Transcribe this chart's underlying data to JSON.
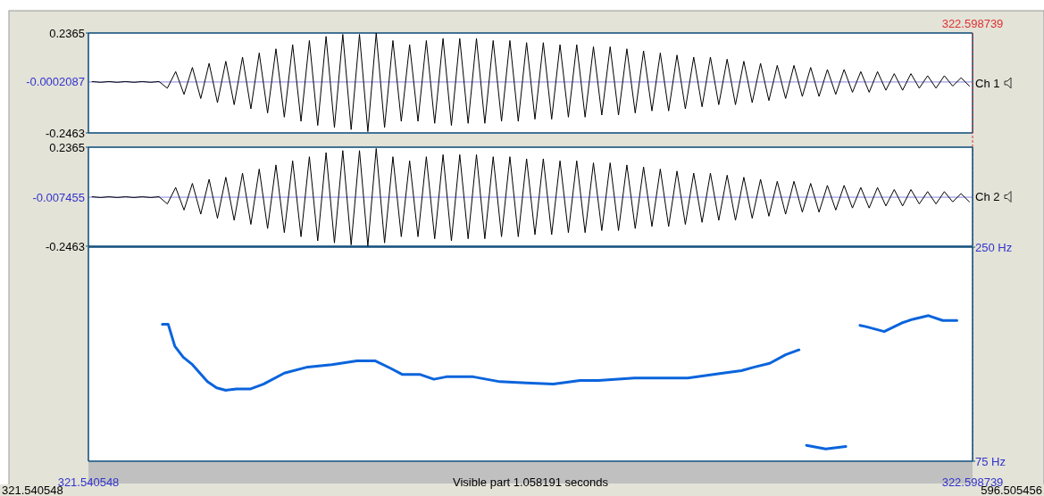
{
  "chart_data": [
    {
      "type": "line",
      "x": [
        321.545,
        321.555,
        321.565,
        321.575,
        321.585,
        321.595,
        321.605,
        321.615,
        321.625,
        321.635,
        321.645,
        321.655,
        321.665,
        321.675,
        321.685,
        321.695,
        321.705,
        321.715,
        321.725,
        321.735,
        321.745,
        321.755,
        321.765,
        321.775,
        321.785,
        321.795,
        321.805,
        321.815,
        321.825,
        321.835,
        321.845,
        321.855,
        321.865,
        321.875,
        321.885,
        321.895,
        321.905,
        321.915,
        321.925,
        321.935,
        321.945,
        321.955,
        321.965,
        321.975,
        321.985,
        321.995,
        322.005,
        322.015,
        322.025,
        322.035,
        322.045,
        322.055,
        322.065,
        322.075,
        322.085,
        322.095,
        322.105,
        322.115,
        322.125,
        322.135,
        322.145,
        322.155,
        322.165,
        322.175,
        322.185,
        322.195,
        322.205,
        322.215,
        322.225,
        322.235,
        322.245,
        322.255,
        322.265,
        322.275,
        322.285,
        322.295,
        322.305,
        322.315,
        322.325,
        322.335,
        322.345,
        322.355,
        322.365,
        322.375,
        322.385,
        322.395,
        322.405,
        322.415,
        322.425,
        322.435,
        322.445,
        322.455,
        322.465,
        322.475,
        322.485,
        322.495,
        322.505,
        322.515,
        322.525,
        322.535,
        322.545,
        322.555,
        322.565,
        322.575,
        322.585,
        322.595
      ],
      "series": [
        {
          "name": "Ch 1",
          "color": "#000000",
          "values": [
            0.002,
            -0.002,
            0.002,
            -0.002,
            0.002,
            -0.002,
            0.002,
            -0.002,
            0.002,
            -0.03,
            0.05,
            -0.06,
            0.07,
            -0.08,
            0.09,
            -0.1,
            0.1,
            -0.11,
            0.12,
            -0.13,
            0.14,
            -0.15,
            0.16,
            -0.17,
            0.18,
            -0.19,
            0.2,
            -0.21,
            0.22,
            -0.22,
            0.23,
            -0.23,
            0.23,
            -0.24,
            0.236,
            -0.22,
            0.2,
            -0.19,
            0.18,
            -0.19,
            0.2,
            -0.2,
            0.21,
            -0.21,
            0.21,
            -0.2,
            0.21,
            -0.2,
            0.2,
            -0.19,
            0.2,
            -0.19,
            0.19,
            -0.18,
            0.19,
            -0.18,
            0.18,
            -0.17,
            0.18,
            -0.17,
            0.17,
            -0.16,
            0.17,
            -0.16,
            0.16,
            -0.15,
            0.15,
            -0.14,
            0.14,
            -0.14,
            0.13,
            -0.13,
            0.12,
            -0.12,
            0.12,
            -0.11,
            0.11,
            -0.11,
            0.1,
            -0.1,
            0.09,
            -0.09,
            0.08,
            -0.08,
            0.08,
            -0.07,
            0.07,
            -0.07,
            0.06,
            -0.06,
            0.06,
            -0.05,
            0.05,
            -0.05,
            0.05,
            -0.04,
            0.04,
            -0.04,
            0.04,
            -0.03,
            0.03,
            -0.03,
            0.03,
            -0.02,
            0.02,
            -0.02
          ]
        }
      ],
      "xlim": [
        321.540548,
        322.598739
      ],
      "ylim": [
        -0.2463,
        0.2365
      ],
      "yticks": [
        -0.2463,
        0.2365
      ],
      "tick_labels": "y",
      "ref_lines": [
        {
          "axis": "y",
          "value": -0.0002087,
          "label": "-0.0002087",
          "color": "#3333cc"
        },
        {
          "axis": "x",
          "value": 322.598739,
          "label": "322.598739",
          "color": "#e03030",
          "line_style": "dashed"
        }
      ]
    },
    {
      "type": "line",
      "x": [
        321.545,
        321.555,
        321.565,
        321.575,
        321.585,
        321.595,
        321.605,
        321.615,
        321.625,
        321.635,
        321.645,
        321.655,
        321.665,
        321.675,
        321.685,
        321.695,
        321.705,
        321.715,
        321.725,
        321.735,
        321.745,
        321.755,
        321.765,
        321.775,
        321.785,
        321.795,
        321.805,
        321.815,
        321.825,
        321.835,
        321.845,
        321.855,
        321.865,
        321.875,
        321.885,
        321.895,
        321.905,
        321.915,
        321.925,
        321.935,
        321.945,
        321.955,
        321.965,
        321.975,
        321.985,
        321.995,
        322.005,
        322.015,
        322.025,
        322.035,
        322.045,
        322.055,
        322.065,
        322.075,
        322.085,
        322.095,
        322.105,
        322.115,
        322.125,
        322.135,
        322.145,
        322.155,
        322.165,
        322.175,
        322.185,
        322.195,
        322.205,
        322.215,
        322.225,
        322.235,
        322.245,
        322.255,
        322.265,
        322.275,
        322.285,
        322.295,
        322.305,
        322.315,
        322.325,
        322.335,
        322.345,
        322.355,
        322.365,
        322.375,
        322.385,
        322.395,
        322.405,
        322.415,
        322.425,
        322.435,
        322.445,
        322.455,
        322.465,
        322.475,
        322.485,
        322.495,
        322.505,
        322.515,
        322.525,
        322.535,
        322.545,
        322.555,
        322.565,
        322.575,
        322.585,
        322.595
      ],
      "series": [
        {
          "name": "Ch 2",
          "color": "#000000",
          "values": [
            -0.005,
            -0.009,
            -0.005,
            -0.009,
            -0.005,
            -0.009,
            -0.005,
            -0.009,
            -0.005,
            -0.04,
            0.04,
            -0.07,
            0.06,
            -0.09,
            0.08,
            -0.11,
            0.09,
            -0.12,
            0.11,
            -0.14,
            0.13,
            -0.16,
            0.15,
            -0.18,
            0.17,
            -0.2,
            0.19,
            -0.22,
            0.21,
            -0.23,
            0.22,
            -0.24,
            0.22,
            -0.245,
            0.23,
            -0.23,
            0.19,
            -0.2,
            0.17,
            -0.2,
            0.19,
            -0.21,
            0.2,
            -0.22,
            0.2,
            -0.21,
            0.2,
            -0.21,
            0.19,
            -0.2,
            0.19,
            -0.2,
            0.18,
            -0.19,
            0.18,
            -0.19,
            0.17,
            -0.18,
            0.17,
            -0.18,
            0.16,
            -0.17,
            0.16,
            -0.17,
            0.15,
            -0.16,
            0.14,
            -0.15,
            0.13,
            -0.15,
            0.12,
            -0.14,
            0.11,
            -0.13,
            0.11,
            -0.12,
            0.1,
            -0.12,
            0.09,
            -0.11,
            0.08,
            -0.1,
            0.07,
            -0.09,
            0.07,
            -0.08,
            0.06,
            -0.08,
            0.05,
            -0.07,
            0.05,
            -0.06,
            0.04,
            -0.06,
            0.04,
            -0.05,
            0.03,
            -0.05,
            0.03,
            -0.04,
            0.02,
            -0.04,
            0.02,
            -0.03,
            0.01,
            -0.03
          ]
        }
      ],
      "xlim": [
        321.540548,
        322.598739
      ],
      "ylim": [
        -0.2463,
        0.2365
      ],
      "yticks": [
        -0.2463,
        0.2365
      ],
      "tick_labels": "y",
      "ref_lines": [
        {
          "axis": "y",
          "value": -0.007455,
          "label": "-0.007455",
          "color": "#3333cc"
        }
      ]
    },
    {
      "type": "line",
      "xlabel": "Visible part 1.058191 seconds",
      "series": [
        {
          "color": "#0a64dc",
          "x": [
            321.629,
            321.636,
            321.644,
            321.654,
            321.665,
            321.683,
            321.694,
            321.705,
            321.718,
            321.734,
            321.75,
            321.775,
            321.803,
            321.832,
            321.862,
            321.884,
            321.902,
            321.916,
            321.937,
            321.954,
            321.969,
            322.001,
            322.033,
            322.065,
            322.097,
            322.129,
            322.151,
            322.194,
            322.226,
            322.258,
            322.3,
            322.322,
            322.338,
            322.356,
            322.375,
            322.391,
            322.395,
            322.4,
            322.423,
            322.447,
            322.455,
            322.464,
            322.471,
            322.493,
            322.514,
            322.527,
            322.546,
            322.563,
            322.58
          ],
          "values": [
            187,
            187,
            169,
            160,
            154,
            140,
            135,
            133,
            134,
            134,
            138,
            147,
            152,
            154,
            157,
            157,
            151,
            146,
            146,
            142,
            144,
            144,
            140,
            139,
            138,
            141,
            141,
            143,
            143,
            143,
            147,
            149,
            152,
            155,
            162,
            166,
            null,
            88,
            85,
            87,
            null,
            186,
            185,
            181,
            188,
            191,
            194,
            190,
            190
          ]
        }
      ],
      "xlim": [
        321.540548,
        322.598739
      ],
      "xticks": [
        321.540548,
        322.598739
      ],
      "ylim": [
        75,
        250
      ],
      "yticks": [
        {
          "value": 75,
          "label": "75 Hz"
        },
        {
          "value": 250,
          "label": "250 Hz"
        }
      ],
      "annotations": [
        "321.540548",
        "596.505456"
      ]
    }
  ]
}
